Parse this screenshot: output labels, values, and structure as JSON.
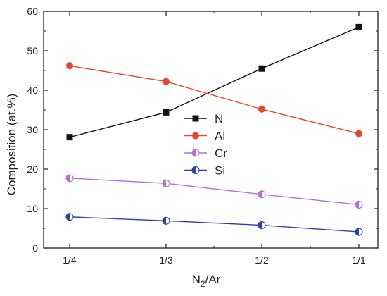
{
  "chart_data": {
    "type": "line",
    "categories": [
      "1/4",
      "1/3",
      "1/2",
      "1/1"
    ],
    "xlabel_main": "N",
    "xlabel_sub": "2",
    "xlabel_rest": "/Ar",
    "ylabel": "Composition (at.%)",
    "ylim": [
      0,
      60
    ],
    "yticks": [
      "0",
      "10",
      "20",
      "30",
      "40",
      "50",
      "60"
    ],
    "grid": false,
    "legend_position": "center",
    "series": [
      {
        "name": "N",
        "values": [
          28.1,
          34.4,
          45.5,
          56.0
        ],
        "color": "#111111",
        "marker": "square"
      },
      {
        "name": "Al",
        "values": [
          46.2,
          42.2,
          35.2,
          29.0
        ],
        "color": "#e8472c",
        "marker": "circle"
      },
      {
        "name": "Cr",
        "values": [
          17.7,
          16.4,
          13.6,
          11.0
        ],
        "color": "#b56fd6",
        "marker": "half-circle-left"
      },
      {
        "name": "Si",
        "values": [
          7.9,
          6.9,
          5.8,
          4.1
        ],
        "color": "#2e3fa6",
        "marker": "half-circle-left"
      }
    ]
  }
}
